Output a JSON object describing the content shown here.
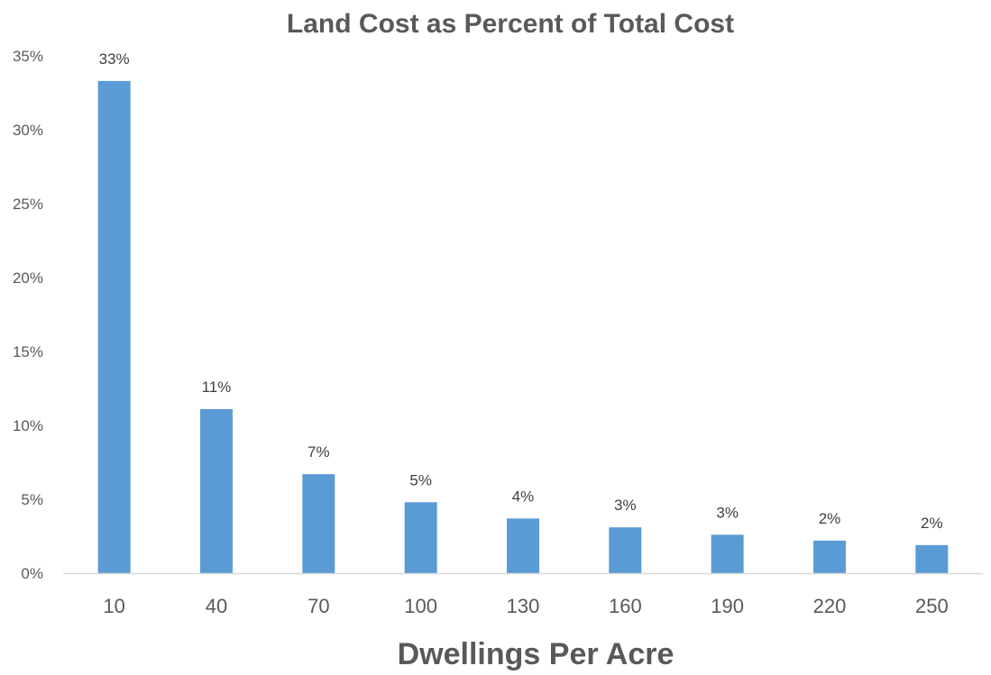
{
  "chart_data": {
    "type": "bar",
    "title": "Land Cost as Percent of Total Cost",
    "xlabel": "Dwellings Per Acre",
    "ylabel": "",
    "categories": [
      "10",
      "40",
      "70",
      "100",
      "130",
      "160",
      "190",
      "220",
      "250"
    ],
    "values": [
      33.3,
      11.1,
      6.7,
      4.8,
      3.7,
      3.1,
      2.6,
      2.2,
      1.9
    ],
    "data_labels": [
      "33%",
      "11%",
      "7%",
      "5%",
      "4%",
      "3%",
      "3%",
      "2%",
      "2%"
    ],
    "y_ticks": [
      0,
      5,
      10,
      15,
      20,
      25,
      30,
      35
    ],
    "y_tick_labels": [
      "0%",
      "5%",
      "10%",
      "15%",
      "20%",
      "25%",
      "30%",
      "35%"
    ],
    "ylim": [
      0,
      35
    ],
    "grid": false,
    "legend": "none",
    "bar_color": "#5b9bd5",
    "axis_color": "#d9d9d9"
  }
}
